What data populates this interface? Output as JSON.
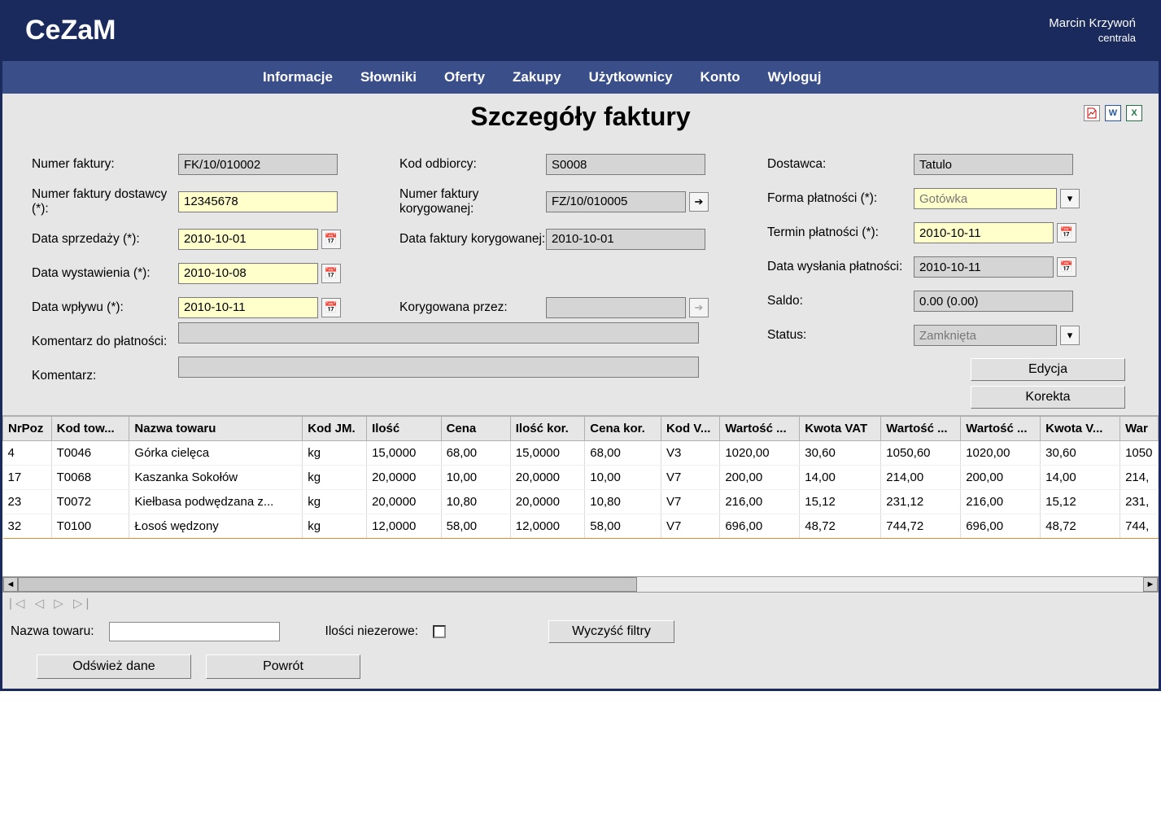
{
  "colors": {
    "header_bg": "#1a2a5c",
    "nav_bg": "#3a4f8a",
    "panel_bg": "#e6e6e6",
    "editable_bg": "#ffffcc",
    "readonly_bg": "#d5d5d5",
    "row_underline": "#e28b3d"
  },
  "brand": "CeZaM",
  "user": {
    "name": "Marcin Krzywoń",
    "location": "centrala"
  },
  "nav": {
    "items": [
      "Informacje",
      "Słowniki",
      "Oferty",
      "Zakupy",
      "Użytkownicy",
      "Konto",
      "Wyloguj"
    ]
  },
  "page_title": "Szczegóły faktury",
  "export_icons": {
    "pdf": "PDF",
    "doc": "W",
    "xls": "X"
  },
  "form": {
    "labels": {
      "numer_faktury": "Numer faktury:",
      "numer_faktury_dostawcy": "Numer faktury dostawcy (*):",
      "data_sprzedazy": "Data sprzedaży (*):",
      "data_wystawienia": "Data wystawienia (*):",
      "data_wplywu": "Data wpływu (*):",
      "komentarz_platnosci": "Komentarz do płatności:",
      "komentarz": "Komentarz:",
      "kod_odbiorcy": "Kod odbiorcy:",
      "numer_korygowanej": "Numer faktury korygowanej:",
      "data_korygowanej": "Data faktury korygowanej:",
      "korygowana_przez": "Korygowana przez:",
      "dostawca": "Dostawca:",
      "forma_platnosci": "Forma płatności (*):",
      "termin_platnosci": "Termin płatności (*):",
      "data_wyslania": "Data wysłania płatności:",
      "saldo": "Saldo:",
      "status": "Status:"
    },
    "values": {
      "numer_faktury": "FK/10/010002",
      "numer_faktury_dostawcy": "12345678",
      "data_sprzedazy": "2010-10-01",
      "data_wystawienia": "2010-10-08",
      "data_wplywu": "2010-10-11",
      "komentarz_platnosci": "",
      "komentarz": "",
      "kod_odbiorcy": "S0008",
      "numer_korygowanej": "FZ/10/010005",
      "data_korygowanej": "2010-10-01",
      "korygowana_przez": "",
      "dostawca": "Tatulo",
      "forma_platnosci": "Gotówka",
      "termin_platnosci": "2010-10-11",
      "data_wyslania": "2010-10-11",
      "saldo": "0.00 (0.00)",
      "status": "Zamknięta"
    },
    "buttons": {
      "edycja": "Edycja",
      "korekta": "Korekta"
    }
  },
  "table": {
    "columns": [
      "NrPoz",
      "Kod tow...",
      "Nazwa towaru",
      "Kod JM.",
      "Ilość",
      "Cena",
      "Ilość kor.",
      "Cena kor.",
      "Kod V...",
      "Wartość ...",
      "Kwota VAT",
      "Wartość ...",
      "Wartość ...",
      "Kwota V...",
      "War"
    ],
    "rows": [
      [
        "4",
        "T0046",
        "Górka cielęca",
        "kg",
        "15,0000",
        "68,00",
        "15,0000",
        "68,00",
        "V3",
        "1020,00",
        "30,60",
        "1050,60",
        "1020,00",
        "30,60",
        "1050"
      ],
      [
        "17",
        "T0068",
        "Kaszanka Sokołów",
        "kg",
        "20,0000",
        "10,00",
        "20,0000",
        "10,00",
        "V7",
        "200,00",
        "14,00",
        "214,00",
        "200,00",
        "14,00",
        "214,"
      ],
      [
        "23",
        "T0072",
        "Kiełbasa podwędzana z...",
        "kg",
        "20,0000",
        "10,80",
        "20,0000",
        "10,80",
        "V7",
        "216,00",
        "15,12",
        "231,12",
        "216,00",
        "15,12",
        "231,"
      ],
      [
        "32",
        "T0100",
        "Łosoś wędzony",
        "kg",
        "12,0000",
        "58,00",
        "12,0000",
        "58,00",
        "V7",
        "696,00",
        "48,72",
        "744,72",
        "696,00",
        "48,72",
        "744,"
      ]
    ]
  },
  "pager_glyphs": "|◁  ◁  ▷  ▷|",
  "filters": {
    "nazwa_label": "Nazwa towaru:",
    "nazwa_value": "",
    "niezerowe_label": "Ilości niezerowe:",
    "clear_btn": "Wyczyść filtry"
  },
  "bottom": {
    "refresh": "Odśwież dane",
    "back": "Powrót"
  }
}
